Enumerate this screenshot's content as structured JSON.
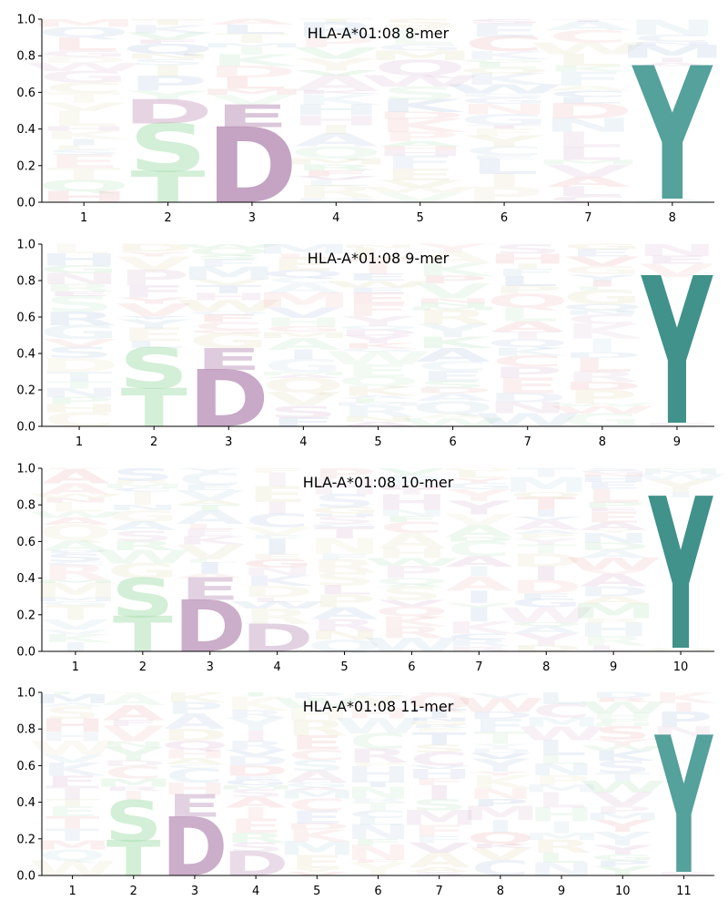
{
  "chart_data": [
    {
      "type": "sequence-logo",
      "title": "HLA-A*01:08 8-mer",
      "ylim": [
        0,
        1
      ],
      "yticks": [
        "0.0",
        "0.2",
        "0.4",
        "0.6",
        "0.8",
        "1.0"
      ],
      "positions": [
        "1",
        "2",
        "3",
        "4",
        "5",
        "6",
        "7",
        "8"
      ],
      "anchors": [
        {
          "position": "2",
          "letters": [
            {
              "letter": "T",
              "bottom": 0.0,
              "top": 0.17,
              "color": "#a8e0b0",
              "opacity": 0.5
            },
            {
              "letter": "S",
              "bottom": 0.17,
              "top": 0.43,
              "color": "#a8e0b0",
              "opacity": 0.5
            },
            {
              "letter": "D",
              "bottom": 0.43,
              "top": 0.56,
              "color": "#c9a0c2",
              "opacity": 0.45
            }
          ]
        },
        {
          "position": "3",
          "letters": [
            {
              "letter": "D",
              "bottom": 0.0,
              "top": 0.41,
              "color": "#b58cb4",
              "opacity": 0.8
            },
            {
              "letter": "E",
              "bottom": 0.41,
              "top": 0.53,
              "color": "#b58cb4",
              "opacity": 0.5
            }
          ]
        },
        {
          "position": "8",
          "letters": [
            {
              "letter": "Y",
              "bottom": 0.02,
              "top": 0.74,
              "color": "#2a8a82",
              "opacity": 0.8
            }
          ]
        }
      ]
    },
    {
      "type": "sequence-logo",
      "title": "HLA-A*01:08 9-mer",
      "ylim": [
        0,
        1
      ],
      "yticks": [
        "0.0",
        "0.2",
        "0.4",
        "0.6",
        "0.8",
        "1.0"
      ],
      "positions": [
        "1",
        "2",
        "3",
        "4",
        "5",
        "6",
        "7",
        "8",
        "9"
      ],
      "anchors": [
        {
          "position": "2",
          "letters": [
            {
              "letter": "T",
              "bottom": 0.0,
              "top": 0.21,
              "color": "#a8e0b0",
              "opacity": 0.5
            },
            {
              "letter": "S",
              "bottom": 0.21,
              "top": 0.43,
              "color": "#a8e0b0",
              "opacity": 0.5
            }
          ]
        },
        {
          "position": "3",
          "letters": [
            {
              "letter": "D",
              "bottom": 0.0,
              "top": 0.31,
              "color": "#b58cb4",
              "opacity": 0.75
            },
            {
              "letter": "E",
              "bottom": 0.31,
              "top": 0.43,
              "color": "#b58cb4",
              "opacity": 0.45
            }
          ]
        },
        {
          "position": "9",
          "letters": [
            {
              "letter": "Y",
              "bottom": 0.02,
              "top": 0.82,
              "color": "#1f7f77",
              "opacity": 0.85
            }
          ]
        }
      ]
    },
    {
      "type": "sequence-logo",
      "title": "HLA-A*01:08 10-mer",
      "ylim": [
        0,
        1
      ],
      "yticks": [
        "0.0",
        "0.2",
        "0.4",
        "0.6",
        "0.8",
        "1.0"
      ],
      "positions": [
        "1",
        "2",
        "3",
        "4",
        "5",
        "6",
        "7",
        "8",
        "9",
        "10"
      ],
      "anchors": [
        {
          "position": "2",
          "letters": [
            {
              "letter": "T",
              "bottom": 0.0,
              "top": 0.19,
              "color": "#a8e0b0",
              "opacity": 0.5
            },
            {
              "letter": "S",
              "bottom": 0.19,
              "top": 0.4,
              "color": "#a8e0b0",
              "opacity": 0.5
            }
          ]
        },
        {
          "position": "3",
          "letters": [
            {
              "letter": "D",
              "bottom": 0.0,
              "top": 0.28,
              "color": "#b58cb4",
              "opacity": 0.7
            },
            {
              "letter": "E",
              "bottom": 0.28,
              "top": 0.4,
              "color": "#b58cb4",
              "opacity": 0.4
            }
          ]
        },
        {
          "position": "4",
          "letters": [
            {
              "letter": "D",
              "bottom": 0.0,
              "top": 0.15,
              "color": "#b58cb4",
              "opacity": 0.4
            }
          ]
        },
        {
          "position": "10",
          "letters": [
            {
              "letter": "Y",
              "bottom": 0.02,
              "top": 0.84,
              "color": "#1f7f77",
              "opacity": 0.85
            }
          ]
        }
      ]
    },
    {
      "type": "sequence-logo",
      "title": "HLA-A*01:08 11-mer",
      "ylim": [
        0,
        1
      ],
      "yticks": [
        "0.0",
        "0.2",
        "0.4",
        "0.6",
        "0.8",
        "1.0"
      ],
      "positions": [
        "1",
        "2",
        "3",
        "4",
        "5",
        "6",
        "7",
        "8",
        "9",
        "10",
        "11"
      ],
      "anchors": [
        {
          "position": "2",
          "letters": [
            {
              "letter": "T",
              "bottom": 0.0,
              "top": 0.19,
              "color": "#a8e0b0",
              "opacity": 0.5
            },
            {
              "letter": "S",
              "bottom": 0.19,
              "top": 0.41,
              "color": "#a8e0b0",
              "opacity": 0.5
            }
          ]
        },
        {
          "position": "3",
          "letters": [
            {
              "letter": "D",
              "bottom": 0.0,
              "top": 0.32,
              "color": "#b58cb4",
              "opacity": 0.7
            },
            {
              "letter": "E",
              "bottom": 0.32,
              "top": 0.44,
              "color": "#b58cb4",
              "opacity": 0.4
            }
          ]
        },
        {
          "position": "4",
          "letters": [
            {
              "letter": "D",
              "bottom": 0.0,
              "top": 0.13,
              "color": "#b58cb4",
              "opacity": 0.3
            }
          ]
        },
        {
          "position": "11",
          "letters": [
            {
              "letter": "Y",
              "bottom": 0.02,
              "top": 0.76,
              "color": "#2a8a82",
              "opacity": 0.8
            }
          ]
        }
      ]
    }
  ],
  "background_letters": [
    "A",
    "C",
    "D",
    "E",
    "F",
    "G",
    "H",
    "I",
    "K",
    "L",
    "M",
    "N",
    "P",
    "Q",
    "R",
    "S",
    "T",
    "V",
    "W",
    "Y"
  ],
  "background_colors": [
    "#9bb5d8",
    "#9fd8a8",
    "#c9a0c2",
    "#e8a0a0",
    "#d8d0a0",
    "#a8c8d8"
  ]
}
